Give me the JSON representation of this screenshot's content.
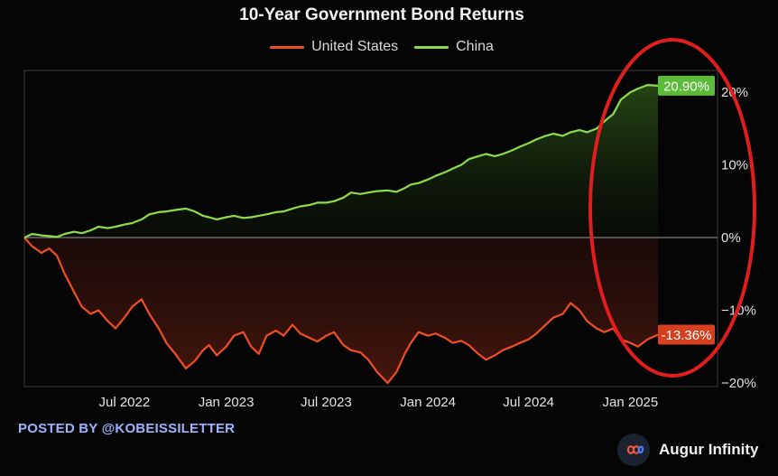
{
  "chart_data": {
    "type": "area",
    "title": "10-Year Government Bond Returns",
    "x_start": "2022-01-01",
    "x_end": "2025-02-20",
    "x_ticks": [
      {
        "date": "2022-07-01",
        "label": "Jul 2022"
      },
      {
        "date": "2023-01-01",
        "label": "Jan 2023"
      },
      {
        "date": "2023-07-01",
        "label": "Jul 2023"
      },
      {
        "date": "2024-01-01",
        "label": "Jan 2024"
      },
      {
        "date": "2024-07-01",
        "label": "Jul 2024"
      },
      {
        "date": "2025-01-01",
        "label": "Jan 2025"
      }
    ],
    "y_ticks": [
      {
        "value": 20,
        "label": "20%"
      },
      {
        "value": 10,
        "label": "10%"
      },
      {
        "value": 0,
        "label": "0%"
      },
      {
        "value": -10,
        "label": "−10%"
      },
      {
        "value": -20,
        "label": "−20%"
      }
    ],
    "ylim": [
      -20.5,
      23
    ],
    "grid": false,
    "legend_placement": "top-center",
    "series": [
      {
        "name": "United States",
        "color": "#f04e23",
        "end_label": "-13.36%",
        "points": [
          [
            "2022-01-01",
            0
          ],
          [
            "2022-01-15",
            -1.2
          ],
          [
            "2022-02-01",
            -2.1
          ],
          [
            "2022-02-15",
            -1.5
          ],
          [
            "2022-03-01",
            -2.5
          ],
          [
            "2022-03-15",
            -5.0
          ],
          [
            "2022-04-01",
            -7.5
          ],
          [
            "2022-04-15",
            -9.5
          ],
          [
            "2022-05-01",
            -10.5
          ],
          [
            "2022-05-15",
            -10.0
          ],
          [
            "2022-06-01",
            -11.5
          ],
          [
            "2022-06-15",
            -12.5
          ],
          [
            "2022-07-01",
            -11.0
          ],
          [
            "2022-07-15",
            -9.5
          ],
          [
            "2022-08-01",
            -8.5
          ],
          [
            "2022-08-15",
            -10.5
          ],
          [
            "2022-09-01",
            -12.5
          ],
          [
            "2022-09-15",
            -14.5
          ],
          [
            "2022-10-01",
            -16.0
          ],
          [
            "2022-10-20",
            -18.0
          ],
          [
            "2022-11-05",
            -17.0
          ],
          [
            "2022-11-20",
            -15.5
          ],
          [
            "2022-12-01",
            -14.8
          ],
          [
            "2022-12-15",
            -16.2
          ],
          [
            "2023-01-01",
            -15.0
          ],
          [
            "2023-01-15",
            -13.5
          ],
          [
            "2023-02-01",
            -13.0
          ],
          [
            "2023-02-15",
            -15.0
          ],
          [
            "2023-03-01",
            -16.0
          ],
          [
            "2023-03-15",
            -13.5
          ],
          [
            "2023-04-01",
            -12.8
          ],
          [
            "2023-04-15",
            -13.5
          ],
          [
            "2023-05-01",
            -12.0
          ],
          [
            "2023-05-15",
            -13.2
          ],
          [
            "2023-06-01",
            -13.8
          ],
          [
            "2023-06-15",
            -14.3
          ],
          [
            "2023-07-01",
            -13.5
          ],
          [
            "2023-07-15",
            -13.0
          ],
          [
            "2023-08-01",
            -14.8
          ],
          [
            "2023-08-15",
            -15.5
          ],
          [
            "2023-09-01",
            -15.8
          ],
          [
            "2023-09-15",
            -16.8
          ],
          [
            "2023-10-01",
            -18.5
          ],
          [
            "2023-10-20",
            -20.0
          ],
          [
            "2023-11-05",
            -18.5
          ],
          [
            "2023-11-20",
            -16.0
          ],
          [
            "2023-12-01",
            -14.5
          ],
          [
            "2023-12-15",
            -13.0
          ],
          [
            "2024-01-01",
            -13.5
          ],
          [
            "2024-01-15",
            -13.2
          ],
          [
            "2024-02-01",
            -13.8
          ],
          [
            "2024-02-15",
            -14.5
          ],
          [
            "2024-03-01",
            -14.2
          ],
          [
            "2024-03-15",
            -14.8
          ],
          [
            "2024-04-01",
            -16.0
          ],
          [
            "2024-04-15",
            -16.8
          ],
          [
            "2024-05-01",
            -16.2
          ],
          [
            "2024-05-15",
            -15.5
          ],
          [
            "2024-06-01",
            -15.0
          ],
          [
            "2024-06-15",
            -14.5
          ],
          [
            "2024-07-01",
            -14.0
          ],
          [
            "2024-07-15",
            -13.2
          ],
          [
            "2024-08-01",
            -12.0
          ],
          [
            "2024-08-15",
            -11.0
          ],
          [
            "2024-09-01",
            -10.5
          ],
          [
            "2024-09-15",
            -9.0
          ],
          [
            "2024-10-01",
            -10.0
          ],
          [
            "2024-10-15",
            -11.5
          ],
          [
            "2024-11-01",
            -12.5
          ],
          [
            "2024-11-15",
            -13.0
          ],
          [
            "2024-12-01",
            -12.5
          ],
          [
            "2024-12-15",
            -14.0
          ],
          [
            "2025-01-01",
            -14.5
          ],
          [
            "2025-01-15",
            -15.0
          ],
          [
            "2025-02-01",
            -14.0
          ],
          [
            "2025-02-20",
            -13.36
          ]
        ]
      },
      {
        "name": "China",
        "color": "#8fdc4a",
        "end_label": "20.90%",
        "points": [
          [
            "2022-01-01",
            0
          ],
          [
            "2022-01-15",
            0.5
          ],
          [
            "2022-02-01",
            0.3
          ],
          [
            "2022-02-15",
            0.2
          ],
          [
            "2022-03-01",
            0.1
          ],
          [
            "2022-03-15",
            0.5
          ],
          [
            "2022-04-01",
            0.8
          ],
          [
            "2022-04-15",
            0.6
          ],
          [
            "2022-05-01",
            1.0
          ],
          [
            "2022-05-15",
            1.5
          ],
          [
            "2022-06-01",
            1.3
          ],
          [
            "2022-06-15",
            1.5
          ],
          [
            "2022-07-01",
            1.8
          ],
          [
            "2022-07-15",
            2.0
          ],
          [
            "2022-08-01",
            2.5
          ],
          [
            "2022-08-15",
            3.2
          ],
          [
            "2022-09-01",
            3.5
          ],
          [
            "2022-09-15",
            3.6
          ],
          [
            "2022-10-01",
            3.8
          ],
          [
            "2022-10-20",
            4.0
          ],
          [
            "2022-11-05",
            3.6
          ],
          [
            "2022-11-20",
            3.0
          ],
          [
            "2022-12-01",
            2.8
          ],
          [
            "2022-12-15",
            2.5
          ],
          [
            "2023-01-01",
            2.8
          ],
          [
            "2023-01-15",
            3.0
          ],
          [
            "2023-02-01",
            2.7
          ],
          [
            "2023-02-15",
            2.8
          ],
          [
            "2023-03-01",
            3.0
          ],
          [
            "2023-03-15",
            3.2
          ],
          [
            "2023-04-01",
            3.5
          ],
          [
            "2023-04-15",
            3.6
          ],
          [
            "2023-05-01",
            4.0
          ],
          [
            "2023-05-15",
            4.3
          ],
          [
            "2023-06-01",
            4.5
          ],
          [
            "2023-06-15",
            4.8
          ],
          [
            "2023-07-01",
            4.8
          ],
          [
            "2023-07-15",
            5.0
          ],
          [
            "2023-08-01",
            5.5
          ],
          [
            "2023-08-15",
            6.2
          ],
          [
            "2023-09-01",
            6.0
          ],
          [
            "2023-09-15",
            6.2
          ],
          [
            "2023-10-01",
            6.4
          ],
          [
            "2023-10-20",
            6.5
          ],
          [
            "2023-11-05",
            6.3
          ],
          [
            "2023-11-20",
            6.8
          ],
          [
            "2023-12-01",
            7.3
          ],
          [
            "2023-12-15",
            7.5
          ],
          [
            "2024-01-01",
            8.0
          ],
          [
            "2024-01-15",
            8.5
          ],
          [
            "2024-02-01",
            9.0
          ],
          [
            "2024-02-15",
            9.5
          ],
          [
            "2024-03-01",
            10.0
          ],
          [
            "2024-03-15",
            10.8
          ],
          [
            "2024-04-01",
            11.2
          ],
          [
            "2024-04-15",
            11.5
          ],
          [
            "2024-05-01",
            11.2
          ],
          [
            "2024-05-15",
            11.5
          ],
          [
            "2024-06-01",
            12.0
          ],
          [
            "2024-06-15",
            12.5
          ],
          [
            "2024-07-01",
            13.0
          ],
          [
            "2024-07-15",
            13.5
          ],
          [
            "2024-08-01",
            14.0
          ],
          [
            "2024-08-15",
            14.3
          ],
          [
            "2024-09-01",
            14.0
          ],
          [
            "2024-09-15",
            14.5
          ],
          [
            "2024-10-01",
            14.8
          ],
          [
            "2024-10-15",
            14.5
          ],
          [
            "2024-11-01",
            15.0
          ],
          [
            "2024-11-15",
            16.0
          ],
          [
            "2024-12-01",
            17.0
          ],
          [
            "2024-12-15",
            19.0
          ],
          [
            "2025-01-01",
            20.0
          ],
          [
            "2025-01-15",
            20.5
          ],
          [
            "2025-02-01",
            21.0
          ],
          [
            "2025-02-20",
            20.9
          ]
        ]
      }
    ]
  },
  "footer": {
    "posted_by": "POSTED BY @KOBEISSILETTER",
    "brand": "Augur Infinity"
  },
  "highlight": {
    "color": "#e01e1e"
  }
}
